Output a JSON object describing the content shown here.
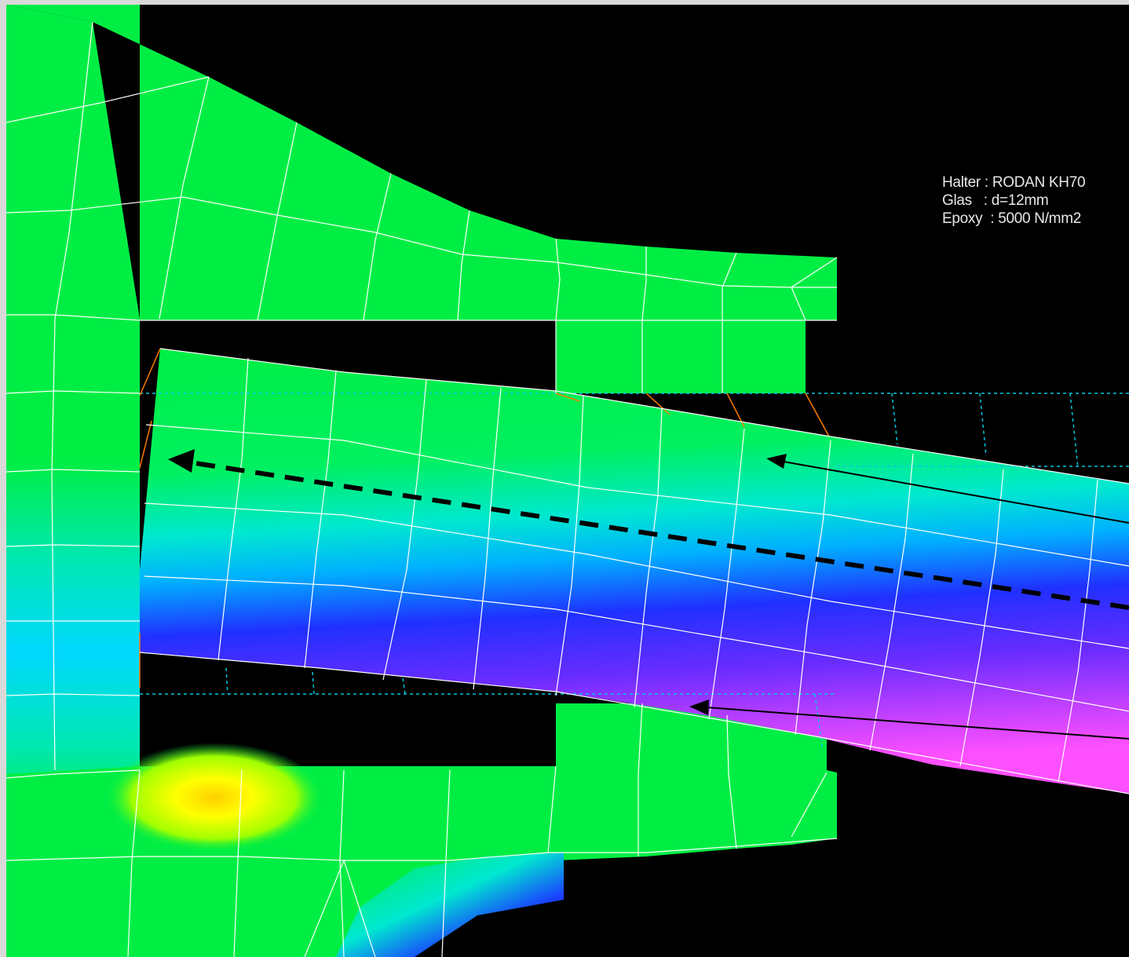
{
  "info_labels": {
    "line1": "Halter : RODAN KH70",
    "line2": "Glas   : d=12mm",
    "line3": "Epoxy  : 5000 N/mm2"
  },
  "colors": {
    "background": "#000000",
    "mesh_lines": "#ffffff",
    "low_stress": "#00ee44",
    "mid_stress": "#00e0ff",
    "high_stress_blue": "#1a1aff",
    "high_stress_magenta": "#ff40ff",
    "compression_yellow": "#ffff00",
    "undeformed_outline": "#00c8e0",
    "deformation_lines": "#ff7a00",
    "annotation_arrows": "#000000"
  },
  "icons": {
    "direction_arrow": "dashed-arrow-left",
    "pointer_arrows": "pointer-arrow"
  }
}
